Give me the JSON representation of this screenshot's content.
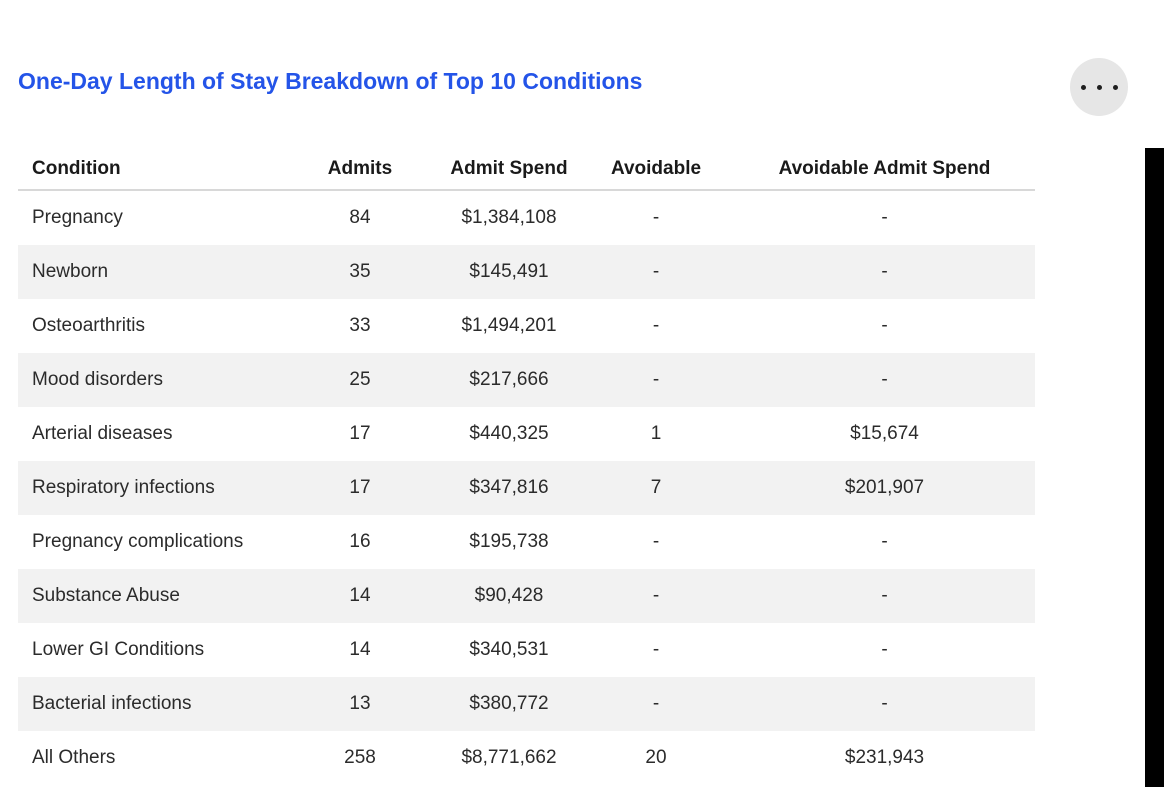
{
  "header": {
    "title": "One-Day Length of Stay Breakdown of Top 10 Conditions"
  },
  "icons": {
    "more_options": "ellipsis-horizontal"
  },
  "colors": {
    "title_text": "#2454E8",
    "header_text": "#1A1A1A",
    "body_text": "#2B2B2B",
    "zebra_stripe": "#F2F2F2",
    "header_rule": "#D8D8D8",
    "more_button_bg": "#E6E6E6",
    "side_panel_edge": "#000000"
  },
  "table": {
    "columns": [
      "Condition",
      "Admits",
      "Admit Spend",
      "Avoidable",
      "Avoidable Admit Spend"
    ],
    "column_keys": [
      "condition",
      "admits",
      "admit-spend",
      "avoidable",
      "avoidable-admit-spend"
    ],
    "rows": [
      [
        "Pregnancy",
        "84",
        "$1,384,108",
        "-",
        "-"
      ],
      [
        "Newborn",
        "35",
        "$145,491",
        "-",
        "-"
      ],
      [
        "Osteoarthritis",
        "33",
        "$1,494,201",
        "-",
        "-"
      ],
      [
        "Mood disorders",
        "25",
        "$217,666",
        "-",
        "-"
      ],
      [
        "Arterial diseases",
        "17",
        "$440,325",
        "1",
        "$15,674"
      ],
      [
        "Respiratory infections",
        "17",
        "$347,816",
        "7",
        "$201,907"
      ],
      [
        "Pregnancy complications",
        "16",
        "$195,738",
        "-",
        "-"
      ],
      [
        "Substance Abuse",
        "14",
        "$90,428",
        "-",
        "-"
      ],
      [
        "Lower GI Conditions",
        "14",
        "$340,531",
        "-",
        "-"
      ],
      [
        "Bacterial infections",
        "13",
        "$380,772",
        "-",
        "-"
      ],
      [
        "All Others",
        "258",
        "$8,771,662",
        "20",
        "$231,943"
      ]
    ]
  }
}
